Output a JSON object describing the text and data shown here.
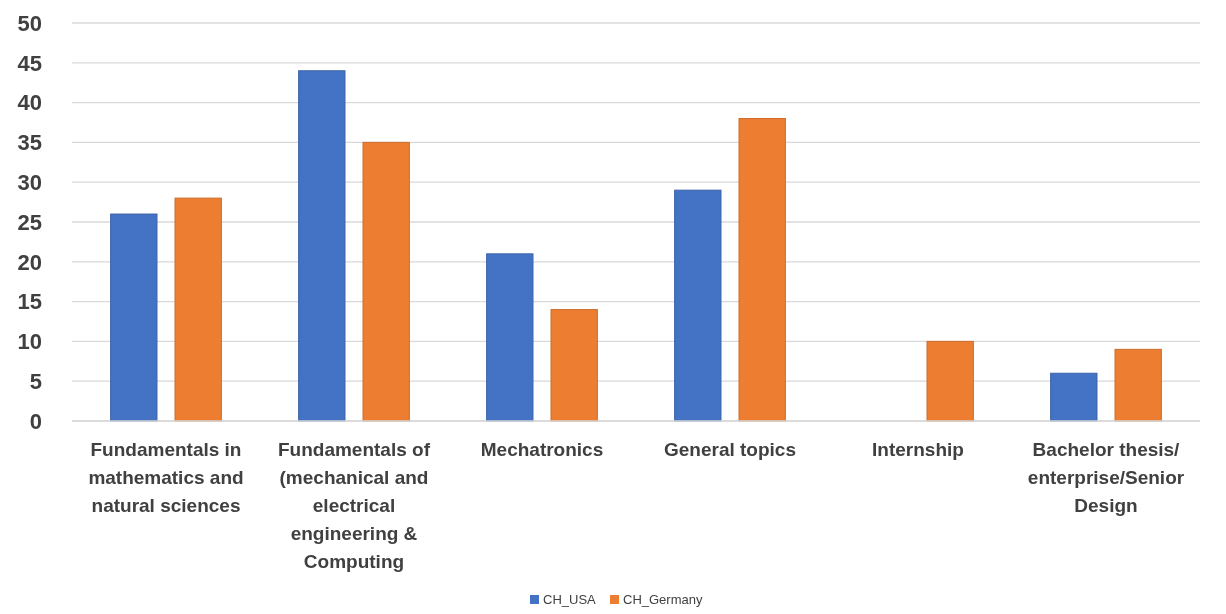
{
  "chart_data": {
    "type": "bar",
    "categories": [
      "Fundamentals in mathematics and natural sciences",
      "Fundamentals of (mechanical and electrical engineering & Computing",
      "Mechatronics",
      "General topics",
      "Internship",
      "Bachelor thesis/ enterprise/Senior Design"
    ],
    "series": [
      {
        "name": "CH_USA",
        "color": "#4472c4",
        "values": [
          26,
          44,
          21,
          29,
          null,
          6
        ]
      },
      {
        "name": "CH_Germany",
        "color": "#ed7d31",
        "values": [
          28,
          35,
          14,
          38,
          10,
          9
        ]
      }
    ],
    "ylim": [
      0,
      50
    ],
    "yticks": [
      0,
      5,
      10,
      15,
      20,
      25,
      30,
      35,
      40,
      45,
      50
    ],
    "grid": "y",
    "legend": "bottom"
  }
}
